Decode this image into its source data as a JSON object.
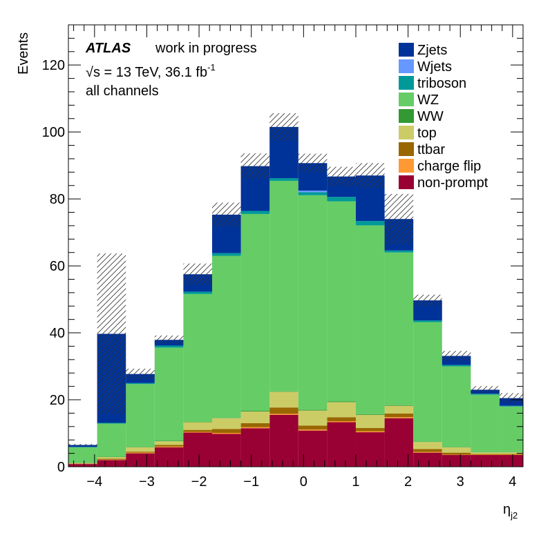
{
  "chart_data": {
    "type": "bar",
    "stacked": true,
    "xlabel": "η",
    "xlabel_sub": "j2",
    "ylabel": "Events",
    "xlim": [
      -4.5,
      4.2
    ],
    "ylim": [
      0,
      132
    ],
    "xticks": [
      -4,
      -3,
      -2,
      -1,
      0,
      1,
      2,
      3,
      4
    ],
    "xtick_labels": [
      "−4",
      "−3",
      "−2",
      "−1",
      "0",
      "1",
      "2",
      "3",
      "4"
    ],
    "yticks": [
      0,
      20,
      40,
      60,
      80,
      100,
      120
    ],
    "ytick_labels": [
      "0",
      "20",
      "40",
      "60",
      "80",
      "100",
      "120"
    ],
    "bin_edges": [
      -4.5,
      -3.95,
      -3.4,
      -2.85,
      -2.3,
      -1.75,
      -1.2,
      -0.65,
      -0.1,
      0.45,
      1.0,
      1.55,
      2.1,
      2.65,
      3.2,
      3.75,
      4.3
    ],
    "annotation": {
      "atlas": "ATLAS",
      "status": "work in progress",
      "energy_prefix": "√s = 13 TeV, 36.1 fb",
      "energy_sup": "-1",
      "channel": "all channels"
    },
    "legend_position": "top-right",
    "series": [
      {
        "name": "non-prompt",
        "color": "#990033",
        "values": [
          0.8,
          2.0,
          4.0,
          5.8,
          10.2,
          9.8,
          11.5,
          15.5,
          10.8,
          13.3,
          10.3,
          14.5,
          4.2,
          3.5,
          3.5,
          3.5
        ]
      },
      {
        "name": "charge flip",
        "color": "#ff9933",
        "values": [
          0.1,
          0.1,
          0.2,
          0.2,
          0.2,
          0.3,
          0.3,
          0.3,
          0.3,
          0.3,
          0.3,
          0.3,
          0.2,
          0.1,
          0.1,
          0.1
        ]
      },
      {
        "name": "ttbar",
        "color": "#996600",
        "values": [
          0.1,
          0.3,
          0.3,
          0.5,
          0.6,
          1.2,
          1.2,
          1.9,
          1.2,
          1.2,
          1.0,
          1.1,
          0.9,
          0.6,
          0.2,
          0.2
        ]
      },
      {
        "name": "top",
        "color": "#cccc66",
        "values": [
          0.1,
          0.5,
          1.3,
          1.1,
          2.3,
          3.2,
          3.5,
          4.7,
          4.5,
          4.5,
          3.9,
          2.3,
          2.1,
          1.6,
          0.5,
          0.5
        ]
      },
      {
        "name": "WW",
        "color": "#339933",
        "values": [
          0.1,
          0.1,
          0.1,
          0.2,
          0.1,
          0.1,
          0.2,
          0.1,
          0.2,
          0.2,
          0.2,
          0.2,
          0.1,
          0.1,
          0.1,
          0.1
        ]
      },
      {
        "name": "WZ",
        "color": "#66cc66",
        "values": [
          4.6,
          9.9,
          18.8,
          27.8,
          38.2,
          48.4,
          58.8,
          62.9,
          64.1,
          59.8,
          56.4,
          45.6,
          35.7,
          24.1,
          17.1,
          13.6
        ]
      },
      {
        "name": "triboson",
        "color": "#009999",
        "values": [
          0.1,
          0.2,
          0.3,
          0.6,
          0.7,
          0.8,
          0.9,
          0.8,
          0.9,
          1.3,
          1.3,
          0.6,
          0.5,
          0.4,
          0.3,
          0.2
        ]
      },
      {
        "name": "Wjets",
        "color": "#6699ff",
        "values": [
          0,
          0,
          0,
          0,
          0,
          0,
          0,
          0,
          0.5,
          0,
          0,
          0,
          0,
          0,
          0,
          0
        ]
      },
      {
        "name": "Zjets",
        "color": "#003399",
        "values": [
          0.6,
          26.6,
          2.7,
          1.7,
          5.2,
          11.5,
          13.4,
          15.3,
          8.2,
          6.1,
          13.6,
          9.4,
          6.0,
          2.7,
          1.2,
          2.3
        ]
      }
    ],
    "uncertainty": {
      "style": "hatched",
      "up": [
        0.3,
        24.0,
        1.6,
        1.3,
        3.2,
        3.6,
        3.8,
        4.1,
        2.8,
        2.9,
        3.7,
        7.5,
        1.7,
        1.5,
        1.1,
        1.5
      ],
      "down": [
        0.3,
        24.0,
        1.6,
        1.3,
        3.2,
        3.6,
        3.8,
        4.1,
        2.8,
        2.9,
        3.7,
        7.5,
        1.7,
        1.5,
        1.1,
        1.5
      ]
    }
  }
}
